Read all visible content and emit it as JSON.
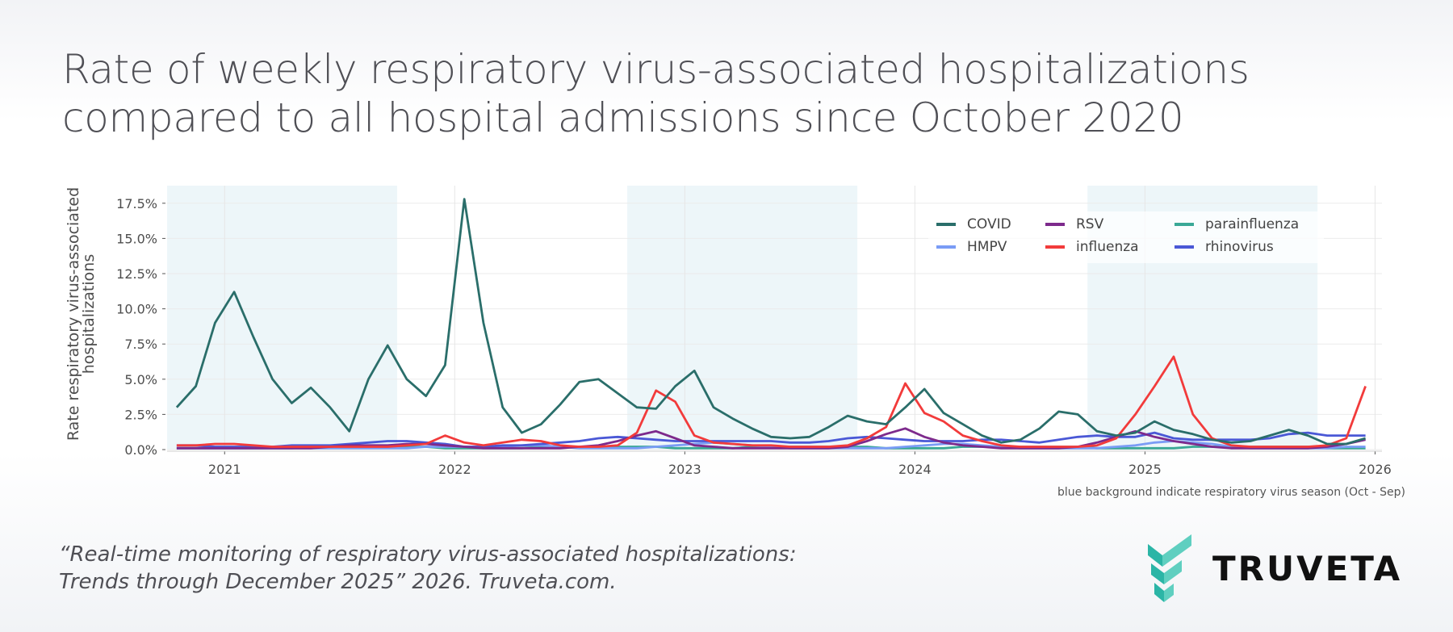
{
  "title": "Rate of weekly respiratory virus-associated hospitalizations compared to all hospital admissions since October 2020",
  "footnote": "blue background indicate respiratory virus season (Oct - Sep)",
  "citation_line1": "“Real-time monitoring of respiratory virus-associated hospitalizations:",
  "citation_line2": "Trends through December 2025” 2026. Truveta.com.",
  "logo": {
    "text": "TRUVETA",
    "color": "#2bb5a6"
  },
  "chart_data": {
    "type": "line",
    "title": "",
    "xlabel": "",
    "ylabel": "Rate respiratory virus-associated hospitalizations",
    "ylim": [
      0,
      18.75
    ],
    "xlim": [
      "2020-10",
      "2026-01"
    ],
    "y_ticks": [
      0,
      2.5,
      5,
      7.5,
      10,
      12.5,
      15,
      17.5
    ],
    "y_tick_labels": [
      "0.0%",
      "2.5%",
      "5.0%",
      "7.5%",
      "10.0%",
      "12.5%",
      "15.0%",
      "17.5%"
    ],
    "x_ticks": [
      "2021",
      "2022",
      "2023",
      "2024",
      "2025",
      "2026"
    ],
    "grid": true,
    "legend_position": "top-right",
    "shaded_seasons": [
      [
        "2020-10",
        "2021-09"
      ],
      [
        "2022-10",
        "2023-09"
      ],
      [
        "2024-10",
        "2025-09"
      ]
    ],
    "shade_color": "#edf6f9",
    "x": [
      "2020-10",
      "2020-11",
      "2020-12",
      "2021-01",
      "2021-02",
      "2021-03",
      "2021-04",
      "2021-05",
      "2021-06",
      "2021-07",
      "2021-08",
      "2021-09",
      "2021-10",
      "2021-11",
      "2021-12",
      "2022-01",
      "2022-02",
      "2022-03",
      "2022-04",
      "2022-05",
      "2022-06",
      "2022-07",
      "2022-08",
      "2022-09",
      "2022-10",
      "2022-11",
      "2022-12",
      "2023-01",
      "2023-02",
      "2023-03",
      "2023-04",
      "2023-05",
      "2023-06",
      "2023-07",
      "2023-08",
      "2023-09",
      "2023-10",
      "2023-11",
      "2023-12",
      "2024-01",
      "2024-02",
      "2024-03",
      "2024-04",
      "2024-05",
      "2024-06",
      "2024-07",
      "2024-08",
      "2024-09",
      "2024-10",
      "2024-11",
      "2024-12",
      "2025-01",
      "2025-02",
      "2025-03",
      "2025-04",
      "2025-05",
      "2025-06",
      "2025-07",
      "2025-08",
      "2025-09",
      "2025-10",
      "2025-11",
      "2025-12"
    ],
    "series": [
      {
        "name": "COVID",
        "color": "#2a6e6a",
        "values": [
          3.0,
          4.5,
          9.0,
          11.2,
          8.0,
          5.0,
          3.3,
          4.4,
          3.0,
          1.3,
          5.0,
          7.4,
          5.0,
          3.8,
          6.0,
          17.8,
          9.0,
          3.0,
          1.2,
          1.8,
          3.2,
          4.8,
          5.0,
          4.0,
          3.0,
          2.9,
          4.5,
          5.6,
          3.0,
          2.2,
          1.5,
          0.9,
          0.8,
          0.9,
          1.6,
          2.4,
          2.0,
          1.8,
          3.0,
          4.3,
          2.6,
          1.8,
          1.0,
          0.5,
          0.7,
          1.5,
          2.7,
          2.5,
          1.3,
          1.0,
          1.2,
          2.0,
          1.4,
          1.1,
          0.7,
          0.5,
          0.6,
          1.0,
          1.4,
          1.0,
          0.4,
          0.4,
          0.8
        ]
      },
      {
        "name": "HMPV",
        "color": "#7a9cf5",
        "values": [
          0.1,
          0.1,
          0.1,
          0.1,
          0.1,
          0.1,
          0.1,
          0.1,
          0.1,
          0.1,
          0.1,
          0.1,
          0.1,
          0.2,
          0.2,
          0.2,
          0.2,
          0.2,
          0.3,
          0.3,
          0.2,
          0.1,
          0.1,
          0.1,
          0.1,
          0.2,
          0.3,
          0.4,
          0.5,
          0.4,
          0.3,
          0.2,
          0.1,
          0.1,
          0.1,
          0.1,
          0.1,
          0.1,
          0.2,
          0.3,
          0.4,
          0.4,
          0.3,
          0.2,
          0.1,
          0.1,
          0.1,
          0.1,
          0.1,
          0.2,
          0.3,
          0.5,
          0.6,
          0.5,
          0.4,
          0.2,
          0.1,
          0.1,
          0.1,
          0.1,
          0.1,
          0.2,
          0.2
        ]
      },
      {
        "name": "RSV",
        "color": "#7d2a8c",
        "values": [
          0.1,
          0.1,
          0.1,
          0.1,
          0.1,
          0.1,
          0.1,
          0.1,
          0.2,
          0.3,
          0.3,
          0.3,
          0.4,
          0.4,
          0.3,
          0.2,
          0.1,
          0.1,
          0.1,
          0.1,
          0.1,
          0.2,
          0.3,
          0.6,
          1.0,
          1.3,
          0.8,
          0.3,
          0.2,
          0.1,
          0.1,
          0.1,
          0.1,
          0.1,
          0.1,
          0.2,
          0.6,
          1.1,
          1.5,
          0.9,
          0.5,
          0.3,
          0.2,
          0.1,
          0.1,
          0.1,
          0.1,
          0.2,
          0.5,
          0.9,
          1.3,
          0.9,
          0.6,
          0.4,
          0.2,
          0.1,
          0.1,
          0.1,
          0.1,
          0.1,
          0.2,
          0.4,
          0.7
        ]
      },
      {
        "name": "influenza",
        "color": "#f23b3b",
        "values": [
          0.3,
          0.3,
          0.4,
          0.4,
          0.3,
          0.2,
          0.2,
          0.2,
          0.2,
          0.2,
          0.2,
          0.2,
          0.3,
          0.4,
          1.0,
          0.5,
          0.3,
          0.5,
          0.7,
          0.6,
          0.3,
          0.2,
          0.2,
          0.3,
          1.2,
          4.2,
          3.4,
          1.0,
          0.5,
          0.4,
          0.3,
          0.3,
          0.2,
          0.2,
          0.2,
          0.3,
          0.8,
          1.6,
          4.7,
          2.6,
          2.0,
          1.0,
          0.6,
          0.3,
          0.2,
          0.2,
          0.2,
          0.2,
          0.3,
          0.8,
          2.5,
          4.5,
          6.6,
          2.5,
          0.8,
          0.3,
          0.2,
          0.2,
          0.2,
          0.2,
          0.3,
          0.8,
          4.5
        ]
      },
      {
        "name": "parainfluenza",
        "color": "#3aa896",
        "values": [
          0.1,
          0.1,
          0.1,
          0.1,
          0.1,
          0.1,
          0.1,
          0.2,
          0.2,
          0.2,
          0.2,
          0.2,
          0.2,
          0.2,
          0.1,
          0.1,
          0.1,
          0.1,
          0.1,
          0.2,
          0.2,
          0.2,
          0.2,
          0.2,
          0.2,
          0.2,
          0.1,
          0.1,
          0.1,
          0.1,
          0.2,
          0.2,
          0.2,
          0.2,
          0.2,
          0.2,
          0.2,
          0.1,
          0.1,
          0.1,
          0.1,
          0.2,
          0.2,
          0.2,
          0.2,
          0.2,
          0.2,
          0.2,
          0.1,
          0.1,
          0.1,
          0.1,
          0.1,
          0.2,
          0.2,
          0.2,
          0.2,
          0.2,
          0.2,
          0.2,
          0.1,
          0.1,
          0.1
        ]
      },
      {
        "name": "rhinovirus",
        "color": "#4a58d6",
        "values": [
          0.3,
          0.3,
          0.2,
          0.2,
          0.2,
          0.2,
          0.3,
          0.3,
          0.3,
          0.4,
          0.5,
          0.6,
          0.6,
          0.5,
          0.4,
          0.2,
          0.2,
          0.3,
          0.3,
          0.4,
          0.5,
          0.6,
          0.8,
          0.9,
          0.8,
          0.7,
          0.6,
          0.6,
          0.6,
          0.6,
          0.6,
          0.6,
          0.5,
          0.5,
          0.6,
          0.8,
          0.9,
          0.8,
          0.7,
          0.6,
          0.6,
          0.6,
          0.7,
          0.7,
          0.6,
          0.5,
          0.7,
          0.9,
          1.0,
          0.9,
          0.9,
          1.2,
          0.8,
          0.7,
          0.7,
          0.7,
          0.7,
          0.8,
          1.1,
          1.2,
          1.0,
          1.0,
          1.0
        ]
      }
    ]
  }
}
